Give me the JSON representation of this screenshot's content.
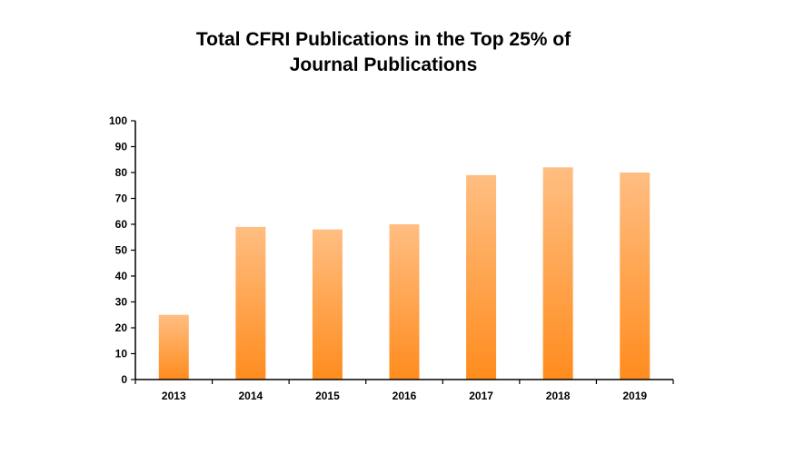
{
  "chart_data": {
    "type": "bar",
    "title_lines": [
      "Total CFRI Publications in the Top 25% of",
      "Journal Publications"
    ],
    "categories": [
      "2013",
      "2014",
      "2015",
      "2016",
      "2017",
      "2018",
      "2019"
    ],
    "values": [
      25,
      59,
      58,
      60,
      79,
      82,
      80
    ],
    "ylim": [
      0,
      100
    ],
    "yticks": [
      "0",
      "10",
      "20",
      "30",
      "40",
      "50",
      "60",
      "70",
      "80",
      "90",
      "100"
    ],
    "xlabel": "",
    "ylabel": "",
    "grid": false,
    "legend": "none",
    "colors": {
      "bar_top": "#FFBE82",
      "bar_bottom": "#FF8C1E",
      "axis": "#000000"
    }
  }
}
